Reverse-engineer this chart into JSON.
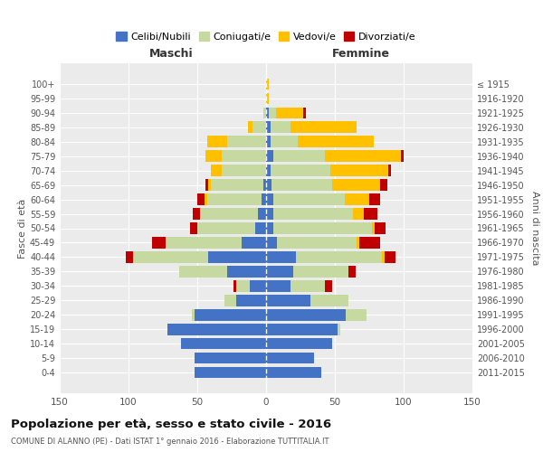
{
  "age_groups": [
    "0-4",
    "5-9",
    "10-14",
    "15-19",
    "20-24",
    "25-29",
    "30-34",
    "35-39",
    "40-44",
    "45-49",
    "50-54",
    "55-59",
    "60-64",
    "65-69",
    "70-74",
    "75-79",
    "80-84",
    "85-89",
    "90-94",
    "95-99",
    "100+"
  ],
  "birth_years": [
    "2011-2015",
    "2006-2010",
    "2001-2005",
    "1996-2000",
    "1991-1995",
    "1986-1990",
    "1981-1985",
    "1976-1980",
    "1971-1975",
    "1966-1970",
    "1961-1965",
    "1956-1960",
    "1951-1955",
    "1946-1950",
    "1941-1945",
    "1936-1940",
    "1931-1935",
    "1926-1930",
    "1921-1925",
    "1916-1920",
    "≤ 1915"
  ],
  "colors": {
    "celibe": "#4472c4",
    "coniugato": "#c5d9a0",
    "vedovo": "#ffc000",
    "divorziato": "#c00000"
  },
  "males": {
    "celibe": [
      52,
      52,
      62,
      72,
      52,
      22,
      12,
      28,
      42,
      18,
      8,
      6,
      3,
      2,
      0,
      0,
      0,
      0,
      0,
      0,
      0
    ],
    "coniugato": [
      0,
      0,
      0,
      0,
      2,
      8,
      10,
      35,
      55,
      55,
      42,
      42,
      40,
      38,
      32,
      32,
      28,
      10,
      2,
      0,
      0
    ],
    "vedovo": [
      0,
      0,
      0,
      0,
      0,
      0,
      0,
      0,
      0,
      0,
      0,
      0,
      2,
      2,
      8,
      12,
      15,
      3,
      0,
      0,
      0
    ],
    "divorziato": [
      0,
      0,
      0,
      0,
      0,
      0,
      2,
      0,
      5,
      10,
      5,
      5,
      5,
      2,
      0,
      0,
      0,
      0,
      0,
      0,
      0
    ]
  },
  "females": {
    "celibe": [
      40,
      35,
      48,
      52,
      58,
      32,
      18,
      20,
      22,
      8,
      5,
      5,
      5,
      4,
      3,
      5,
      3,
      3,
      2,
      0,
      0
    ],
    "coniugato": [
      0,
      0,
      0,
      2,
      15,
      28,
      25,
      40,
      62,
      58,
      72,
      58,
      52,
      44,
      44,
      38,
      20,
      15,
      5,
      0,
      0
    ],
    "vedovo": [
      0,
      0,
      0,
      0,
      0,
      0,
      0,
      0,
      2,
      2,
      2,
      8,
      18,
      35,
      42,
      55,
      55,
      48,
      20,
      2,
      2
    ],
    "divorziato": [
      0,
      0,
      0,
      0,
      0,
      0,
      5,
      5,
      8,
      15,
      8,
      10,
      8,
      5,
      2,
      2,
      0,
      0,
      2,
      0,
      0
    ]
  },
  "title": "Popolazione per età, sesso e stato civile - 2016",
  "subtitle": "COMUNE DI ALANNO (PE) - Dati ISTAT 1° gennaio 2016 - Elaborazione TUTTITALIA.IT",
  "xlabel_left": "Maschi",
  "xlabel_right": "Femmine",
  "ylabel_left": "Fasce di età",
  "ylabel_right": "Anni di nascita",
  "xlim": 150,
  "background_color": "#ebebeb",
  "legend_labels": [
    "Celibi/Nubili",
    "Coniugati/e",
    "Vedovi/e",
    "Divorziati/e"
  ]
}
